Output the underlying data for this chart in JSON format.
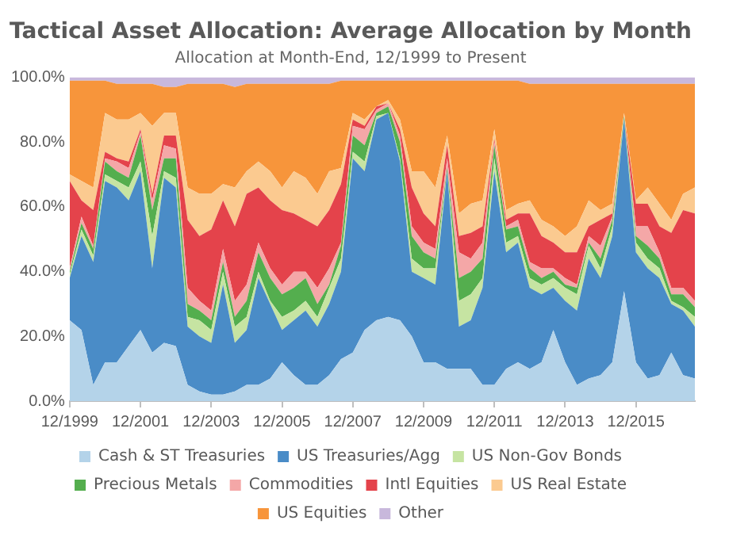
{
  "chart_data": {
    "type": "area",
    "stacked": true,
    "title": "Tactical Asset Allocation: Average Allocation by Month",
    "subtitle": "Allocation at Month-End, 12/1999 to Present",
    "x": [
      "1999-12",
      "2000-04",
      "2000-08",
      "2000-12",
      "2001-04",
      "2001-08",
      "2001-12",
      "2002-04",
      "2002-08",
      "2002-12",
      "2003-04",
      "2003-08",
      "2003-12",
      "2004-04",
      "2004-08",
      "2004-12",
      "2005-04",
      "2005-08",
      "2005-12",
      "2006-04",
      "2006-08",
      "2006-12",
      "2007-04",
      "2007-08",
      "2007-12",
      "2008-04",
      "2008-08",
      "2008-12",
      "2009-04",
      "2009-08",
      "2009-12",
      "2010-04",
      "2010-08",
      "2010-12",
      "2011-04",
      "2011-08",
      "2011-12",
      "2012-04",
      "2012-08",
      "2012-12",
      "2013-04",
      "2013-08",
      "2013-12",
      "2014-04",
      "2014-08",
      "2014-12",
      "2015-04",
      "2015-08",
      "2015-12",
      "2016-04",
      "2016-08",
      "2016-12",
      "2017-04",
      "2017-08"
    ],
    "series": [
      {
        "name": "Cash & ST Treasuries",
        "color": "#b4d3e9",
        "values": [
          25,
          22,
          5,
          12,
          12,
          17,
          22,
          15,
          18,
          17,
          5,
          3,
          2,
          2,
          3,
          5,
          5,
          7,
          12,
          8,
          5,
          5,
          8,
          13,
          15,
          22,
          25,
          26,
          25,
          20,
          12,
          12,
          10,
          10,
          10,
          5,
          5,
          10,
          12,
          10,
          12,
          22,
          12,
          5,
          7,
          8,
          12,
          34,
          12,
          7,
          8,
          15,
          8,
          7
        ]
      },
      {
        "name": "US Treasuries/Agg",
        "color": "#4a8cc7",
        "values": [
          13,
          29,
          38,
          56,
          54,
          45,
          49,
          26,
          51,
          49,
          18,
          17,
          16,
          34,
          15,
          17,
          33,
          23,
          10,
          17,
          23,
          18,
          22,
          27,
          60,
          49,
          62,
          63,
          49,
          20,
          26,
          24,
          61,
          13,
          15,
          30,
          66,
          36,
          37,
          25,
          21,
          13,
          19,
          23,
          37,
          30,
          39,
          53,
          34,
          34,
          30,
          15,
          20,
          16
        ]
      },
      {
        "name": "US Non-Gov Bonds",
        "color": "#c6e4a2",
        "values": [
          1,
          2,
          2,
          2,
          2,
          4,
          3,
          10,
          2,
          3,
          3,
          5,
          4,
          4,
          5,
          4,
          2,
          1,
          4,
          3,
          3,
          3,
          5,
          4,
          2,
          3,
          1,
          0,
          1,
          4,
          3,
          5,
          0,
          8,
          8,
          3,
          4,
          3,
          2,
          3,
          3,
          3,
          4,
          5,
          4,
          3,
          3,
          0,
          3,
          3,
          3,
          1,
          1,
          3
        ]
      },
      {
        "name": "Precious Metals",
        "color": "#54ae4e",
        "values": [
          1,
          2,
          2,
          4,
          3,
          3,
          8,
          8,
          4,
          6,
          4,
          3,
          3,
          3,
          3,
          5,
          6,
          7,
          7,
          7,
          7,
          4,
          1,
          4,
          5,
          5,
          1,
          2,
          5,
          7,
          5,
          3,
          1,
          7,
          7,
          6,
          4,
          4,
          3,
          3,
          2,
          2,
          1,
          2,
          1,
          3,
          2,
          1,
          2,
          4,
          3,
          2,
          4,
          3
        ]
      },
      {
        "name": "Commodities",
        "color": "#f4a7a7",
        "values": [
          1,
          2,
          1,
          1,
          3,
          3,
          1,
          3,
          4,
          3,
          5,
          3,
          3,
          4,
          5,
          5,
          3,
          3,
          3,
          5,
          2,
          5,
          5,
          1,
          3,
          5,
          1,
          1,
          2,
          3,
          3,
          3,
          3,
          8,
          4,
          5,
          1,
          1,
          2,
          2,
          3,
          1,
          2,
          1,
          2,
          4,
          1,
          0,
          3,
          6,
          2,
          2,
          2,
          2
        ]
      },
      {
        "name": "Intl Equities",
        "color": "#e4434b",
        "values": [
          27,
          5,
          11,
          2,
          1,
          2,
          1,
          2,
          3,
          4,
          21,
          20,
          25,
          15,
          23,
          28,
          17,
          21,
          23,
          18,
          16,
          19,
          18,
          18,
          2,
          1,
          1,
          0,
          2,
          12,
          9,
          7,
          4,
          5,
          8,
          5,
          1,
          2,
          2,
          15,
          10,
          8,
          8,
          10,
          3,
          8,
          1,
          0,
          7,
          7,
          8,
          17,
          24,
          27
        ]
      },
      {
        "name": "US Real Estate",
        "color": "#fbca90",
        "values": [
          2,
          6,
          7,
          12,
          12,
          13,
          5,
          21,
          7,
          7,
          10,
          13,
          11,
          5,
          12,
          7,
          8,
          9,
          7,
          13,
          13,
          10,
          12,
          5,
          2,
          2,
          0,
          1,
          3,
          5,
          13,
          12,
          3,
          7,
          9,
          8,
          3,
          3,
          3,
          4,
          5,
          5,
          5,
          8,
          8,
          3,
          3,
          1,
          1,
          5,
          7,
          4,
          5,
          8
        ]
      },
      {
        "name": "US Equities",
        "color": "#f7953b",
        "values": [
          29,
          31,
          33,
          10,
          11,
          11,
          9,
          13,
          8,
          8,
          32,
          34,
          34,
          31,
          31,
          27,
          24,
          27,
          32,
          27,
          29,
          34,
          27,
          27,
          10,
          12,
          8,
          6,
          12,
          28,
          28,
          33,
          17,
          41,
          38,
          37,
          15,
          40,
          38,
          36,
          42,
          44,
          47,
          44,
          36,
          39,
          37,
          9,
          36,
          32,
          37,
          42,
          34,
          32
        ]
      },
      {
        "name": "Other",
        "color": "#c8b8dc",
        "values": [
          1,
          1,
          1,
          1,
          2,
          2,
          2,
          2,
          3,
          3,
          2,
          2,
          2,
          2,
          3,
          2,
          2,
          2,
          2,
          2,
          2,
          2,
          2,
          1,
          1,
          1,
          1,
          1,
          1,
          1,
          1,
          1,
          1,
          1,
          1,
          1,
          1,
          1,
          1,
          2,
          2,
          2,
          2,
          2,
          2,
          2,
          2,
          2,
          2,
          2,
          2,
          2,
          2,
          2
        ]
      }
    ],
    "xlim": [
      "1999-12",
      "2017-08"
    ],
    "xticks": [
      {
        "value": "1999-12",
        "label": "12/1999"
      },
      {
        "value": "2001-12",
        "label": "12/2001"
      },
      {
        "value": "2003-12",
        "label": "12/2003"
      },
      {
        "value": "2005-12",
        "label": "12/2005"
      },
      {
        "value": "2007-12",
        "label": "12/2007"
      },
      {
        "value": "2009-12",
        "label": "12/2009"
      },
      {
        "value": "2011-12",
        "label": "12/2011"
      },
      {
        "value": "2013-12",
        "label": "12/2013"
      },
      {
        "value": "2015-12",
        "label": "12/2015"
      }
    ],
    "ylim": [
      0,
      100
    ],
    "yticks": [
      {
        "value": 0,
        "label": "0.0%"
      },
      {
        "value": 20,
        "label": "20.0%"
      },
      {
        "value": 40,
        "label": "40.0%"
      },
      {
        "value": 60,
        "label": "60.0%"
      },
      {
        "value": 80,
        "label": "80.0%"
      },
      {
        "value": 100,
        "label": "100.0%"
      }
    ],
    "grid": false,
    "legend": "bottom"
  }
}
